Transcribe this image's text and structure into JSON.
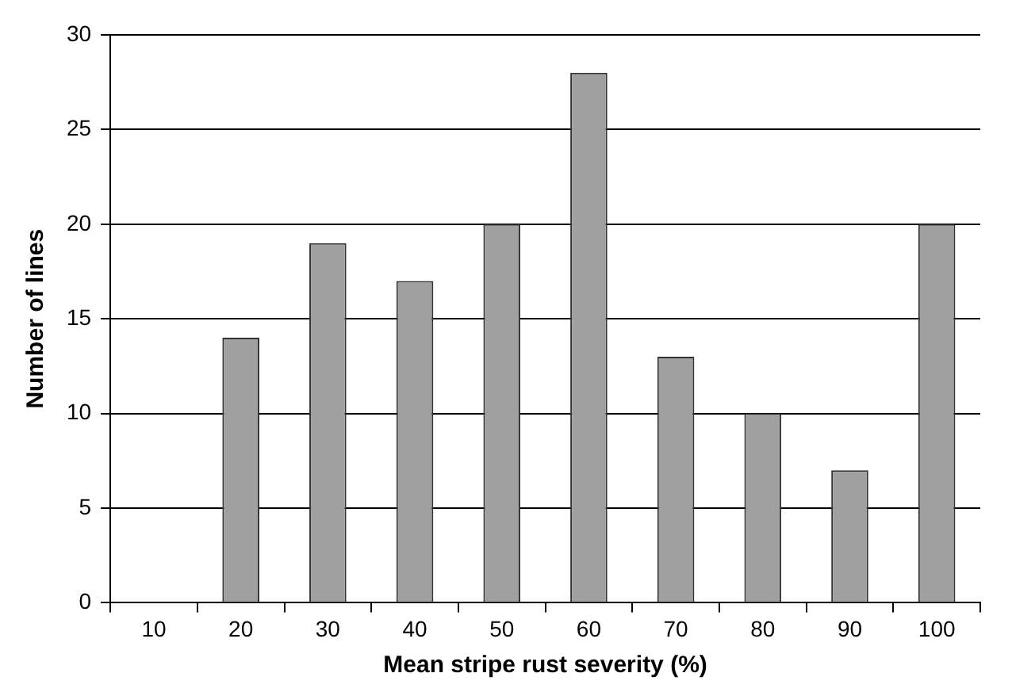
{
  "chart_data": {
    "type": "bar",
    "xlabel": "Mean stripe rust severity (%)",
    "ylabel": "Number of lines",
    "categories": [
      "10",
      "20",
      "30",
      "40",
      "50",
      "60",
      "70",
      "80",
      "90",
      "100"
    ],
    "values": [
      0,
      14,
      19,
      17,
      20,
      28,
      13,
      10,
      7,
      20
    ],
    "color": "#a0a0a0",
    "ylim": [
      0,
      30
    ],
    "yticks": [
      0,
      5,
      10,
      15,
      20,
      25,
      30
    ],
    "grid": "y",
    "legend": false
  }
}
